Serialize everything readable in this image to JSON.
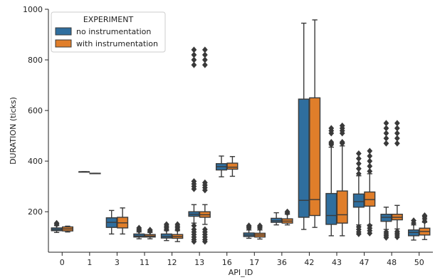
{
  "chart_data": {
    "type": "box",
    "xlabel": "API_ID",
    "ylabel": "DURATION (ticks)",
    "ylim": [
      40,
      1000
    ],
    "y_ticks": [
      200,
      400,
      600,
      800,
      1000
    ],
    "categories": [
      "0",
      "1",
      "3",
      "11",
      "12",
      "13",
      "16",
      "17",
      "36",
      "42",
      "43",
      "47",
      "48",
      "50"
    ],
    "legend": {
      "title": "EXPERIMENT",
      "position": "top-left"
    },
    "grid": false,
    "series": [
      {
        "name": "no instrumentation",
        "color": "#2f6e9e",
        "boxes": [
          {
            "whislo": 118,
            "q1": 125,
            "med": 130,
            "q3": 136,
            "whishi": 145,
            "fliers": [
              150,
              155
            ]
          },
          {
            "whislo": 358,
            "q1": 358,
            "med": 358,
            "q3": 358,
            "whishi": 358,
            "fliers": []
          },
          {
            "whislo": 112,
            "q1": 138,
            "med": 158,
            "q3": 176,
            "whishi": 205,
            "fliers": []
          },
          {
            "whislo": 93,
            "q1": 100,
            "med": 104,
            "q3": 112,
            "whishi": 120,
            "fliers": [
              125,
              130,
              136
            ]
          },
          {
            "whislo": 86,
            "q1": 96,
            "med": 102,
            "q3": 112,
            "whishi": 125,
            "fliers": [
              130,
              137,
              143,
              150
            ]
          },
          {
            "whislo": 155,
            "q1": 182,
            "med": 190,
            "q3": 200,
            "whishi": 228,
            "fliers": [
              82,
              90,
              100,
              110,
              120,
              130,
              145,
              290,
              300,
              310,
              320,
              780,
              800,
              820,
              840
            ]
          },
          {
            "whislo": 338,
            "q1": 365,
            "med": 378,
            "q3": 390,
            "whishi": 420,
            "fliers": []
          },
          {
            "whislo": 95,
            "q1": 102,
            "med": 108,
            "q3": 116,
            "whishi": 128,
            "fliers": [
              135,
              140,
              145
            ]
          },
          {
            "whislo": 148,
            "q1": 158,
            "med": 164,
            "q3": 174,
            "whishi": 196,
            "fliers": []
          },
          {
            "whislo": 130,
            "q1": 178,
            "med": 245,
            "q3": 645,
            "whishi": 945,
            "fliers": []
          },
          {
            "whislo": 105,
            "q1": 150,
            "med": 185,
            "q3": 272,
            "whishi": 455,
            "fliers": [
              465,
              470,
              475,
              510,
              520,
              530
            ]
          },
          {
            "whislo": 148,
            "q1": 218,
            "med": 240,
            "q3": 270,
            "whishi": 342,
            "fliers": [
              112,
              120,
              130,
              140,
              350,
              370,
              390,
              410,
              430
            ]
          },
          {
            "whislo": 130,
            "q1": 162,
            "med": 178,
            "q3": 190,
            "whishi": 218,
            "fliers": [
              98,
              105,
              112,
              120,
              470,
              490,
              510,
              530,
              550
            ]
          },
          {
            "whislo": 88,
            "q1": 105,
            "med": 118,
            "q3": 128,
            "whishi": 148,
            "fliers": [
              155,
              165
            ]
          }
        ]
      },
      {
        "name": "with instrumentation",
        "color": "#e07e2a",
        "boxes": [
          {
            "whislo": 120,
            "q1": 124,
            "med": 132,
            "q3": 140,
            "whishi": 143,
            "fliers": []
          },
          {
            "whislo": 352,
            "q1": 352,
            "med": 352,
            "q3": 352,
            "whishi": 352,
            "fliers": []
          },
          {
            "whislo": 112,
            "q1": 136,
            "med": 156,
            "q3": 178,
            "whishi": 215,
            "fliers": []
          },
          {
            "whislo": 93,
            "q1": 100,
            "med": 104,
            "q3": 110,
            "whishi": 118,
            "fliers": [
              123,
              128
            ]
          },
          {
            "whislo": 82,
            "q1": 95,
            "med": 102,
            "q3": 110,
            "whishi": 125,
            "fliers": [
              130,
              137,
              143,
              150
            ]
          },
          {
            "whislo": 150,
            "q1": 178,
            "med": 188,
            "q3": 200,
            "whishi": 228,
            "fliers": [
              82,
              90,
              100,
              110,
              120,
              130,
              285,
              295,
              305,
              315,
              780,
              800,
              820,
              840
            ]
          },
          {
            "whislo": 340,
            "q1": 368,
            "med": 376,
            "q3": 392,
            "whishi": 418,
            "fliers": []
          },
          {
            "whislo": 92,
            "q1": 100,
            "med": 108,
            "q3": 115,
            "whishi": 128,
            "fliers": [
              135,
              140,
              145
            ]
          },
          {
            "whislo": 148,
            "q1": 155,
            "med": 163,
            "q3": 172,
            "whishi": 190,
            "fliers": [
              195,
              200
            ]
          },
          {
            "whislo": 138,
            "q1": 185,
            "med": 248,
            "q3": 650,
            "whishi": 958,
            "fliers": []
          },
          {
            "whislo": 105,
            "q1": 155,
            "med": 188,
            "q3": 282,
            "whishi": 460,
            "fliers": [
              470,
              475,
              510,
              520,
              530,
              540
            ]
          },
          {
            "whislo": 148,
            "q1": 222,
            "med": 248,
            "q3": 278,
            "whishi": 350,
            "fliers": [
              115,
              125,
              135,
              145,
              360,
              380,
              400,
              420,
              440
            ]
          },
          {
            "whislo": 132,
            "q1": 168,
            "med": 178,
            "q3": 190,
            "whishi": 225,
            "fliers": [
              100,
              108,
              115,
              122,
              470,
              490,
              510,
              530,
              550
            ]
          },
          {
            "whislo": 90,
            "q1": 108,
            "med": 122,
            "q3": 135,
            "whishi": 158,
            "fliers": [
              162,
              172,
              180,
              185
            ]
          }
        ]
      }
    ]
  }
}
